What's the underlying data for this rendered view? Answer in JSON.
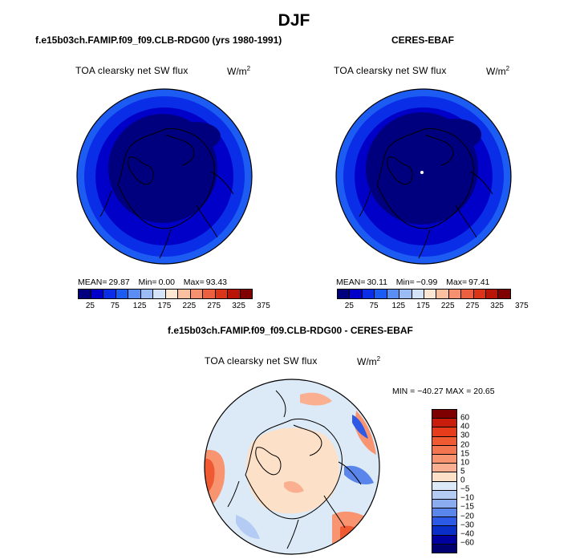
{
  "title": "DJF",
  "panels": {
    "model": {
      "title": "f.e15b03ch.FAMIP.f09_f09.CLB-RDG00 (yrs 1980-1991)",
      "var_label": "TOA clearsky net SW flux",
      "units": "W/m",
      "units_exp": "2",
      "mean_label": "MEAN=",
      "mean": "29.87",
      "min_label": "Min=",
      "min": "0.00",
      "max_label": "Max=",
      "max": "93.43"
    },
    "obs": {
      "title": "CERES-EBAF",
      "var_label": "TOA clearsky net SW flux",
      "units": "W/m",
      "units_exp": "2",
      "mean_label": "MEAN=",
      "mean": "30.11",
      "min_label": "Min=",
      "min": "−0.99",
      "max_label": "Max=",
      "max": "97.41"
    },
    "diff": {
      "title": "f.e15b03ch.FAMIP.f09_f09.CLB-RDG00 - CERES-EBAF",
      "var_label": "TOA clearsky net SW flux",
      "units": "W/m",
      "units_exp": "2",
      "minmax": "MIN = −40.27 MAX =  20.65"
    }
  },
  "colorbar_top": {
    "labels": [
      "25",
      "75",
      "125",
      "175",
      "225",
      "275",
      "325",
      "375"
    ],
    "colors": [
      "#00007f",
      "#0000c8",
      "#0a2ee8",
      "#1d5cf2",
      "#5a8ef5",
      "#9cbcf6",
      "#d5e3f8",
      "#fde6d2",
      "#fbc0a0",
      "#f59070",
      "#ec6040",
      "#dc3418",
      "#b81408",
      "#7f0000"
    ]
  },
  "colorbar_diff": {
    "labels": [
      "60",
      "40",
      "30",
      "20",
      "15",
      "10",
      "5",
      "0",
      "−5",
      "−10",
      "−15",
      "−20",
      "−30",
      "−40",
      "−60"
    ],
    "colors": [
      "#7f0000",
      "#c81c0c",
      "#e63c1c",
      "#f05a32",
      "#f47650",
      "#f89470",
      "#fab090",
      "#fde0c8",
      "#dceaf8",
      "#b4ccf4",
      "#8cacf0",
      "#5a86ec",
      "#2c5ae6",
      "#0a2ec8",
      "#0000a0",
      "#000070"
    ]
  }
}
